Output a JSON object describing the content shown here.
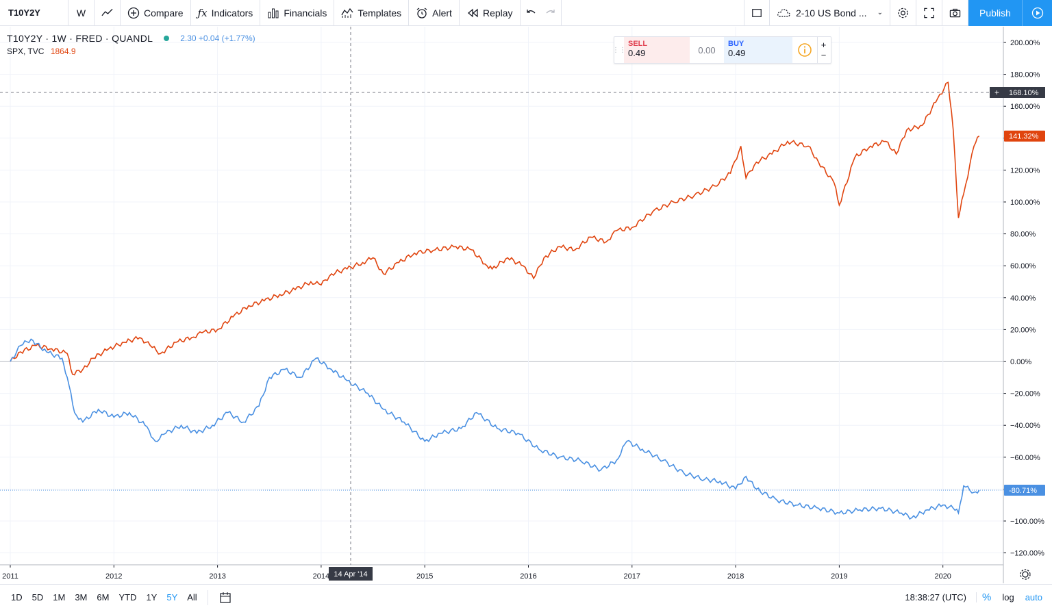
{
  "toolbar": {
    "symbol": "T10Y2Y",
    "interval": "W",
    "compare_label": "Compare",
    "indicators_label": "Indicators",
    "financials_label": "Financials",
    "templates_label": "Templates",
    "alert_label": "Alert",
    "replay_label": "Replay",
    "layout_name": "2-10 US Bond ...",
    "publish_label": "Publish"
  },
  "legend": {
    "main_symbol": "T10Y2Y · 1W · FRED · QUANDL",
    "main_value": "2.30 +0.04 (+1.77%)",
    "compare_symbol": "SPX, TVC",
    "compare_value": "1864.9"
  },
  "trade": {
    "sell_label": "SELL",
    "sell_price": "0.49",
    "spread": "0.00",
    "buy_label": "BUY",
    "buy_price": "0.49"
  },
  "crosshair": {
    "date_label": "14 Apr '14",
    "price_label": "168.10%"
  },
  "price_badges": {
    "spx_last": "141.32%",
    "t10y2y_last": "-80.71%"
  },
  "colors": {
    "spx": "#e0440e",
    "t10y2y": "#4a90e2",
    "grid": "#f0f3fa",
    "crosshair_label": "#363a45"
  },
  "bottombar": {
    "ranges": [
      "1D",
      "5D",
      "1M",
      "3M",
      "6M",
      "YTD",
      "1Y",
      "5Y",
      "All"
    ],
    "active_range": "5Y",
    "clock": "18:38:27 (UTC)",
    "pct_label": "%",
    "log_label": "log",
    "auto_label": "auto"
  },
  "chart_data": {
    "type": "line",
    "x_ticks": [
      "2011",
      "2012",
      "2013",
      "2014",
      "2015",
      "2016",
      "2017",
      "2018",
      "2019",
      "2020"
    ],
    "y_ticks": [
      "200.00%",
      "180.00%",
      "160.00%",
      "140.00%",
      "120.00%",
      "100.00%",
      "80.00%",
      "60.00%",
      "40.00%",
      "20.00%",
      "0.00%",
      "−20.00%",
      "−40.00%",
      "−60.00%",
      "−80.00%",
      "−100.00%",
      "−120.00%"
    ],
    "ylim": [
      -120,
      200
    ],
    "xlim": [
      2011.0,
      2020.5
    ],
    "series": [
      {
        "name": "SPX, TVC",
        "color": "#e0440e",
        "x": [
          2011.0,
          2011.1,
          2011.25,
          2011.4,
          2011.55,
          2011.6,
          2011.7,
          2011.8,
          2011.95,
          2012.1,
          2012.25,
          2012.35,
          2012.45,
          2012.6,
          2012.75,
          2012.85,
          2013.0,
          2013.15,
          2013.3,
          2013.45,
          2013.6,
          2013.75,
          2013.9,
          2014.0,
          2014.1,
          2014.25,
          2014.4,
          2014.5,
          2014.6,
          2014.75,
          2014.9,
          2015.1,
          2015.3,
          2015.45,
          2015.6,
          2015.65,
          2015.8,
          2015.95,
          2016.05,
          2016.15,
          2016.3,
          2016.45,
          2016.6,
          2016.75,
          2016.85,
          2017.0,
          2017.2,
          2017.4,
          2017.6,
          2017.8,
          2017.95,
          2018.05,
          2018.1,
          2018.2,
          2018.35,
          2018.5,
          2018.7,
          2018.8,
          2018.95,
          2019.0,
          2019.15,
          2019.3,
          2019.45,
          2019.55,
          2019.65,
          2019.8,
          2019.95,
          2020.05,
          2020.1,
          2020.15,
          2020.2,
          2020.3,
          2020.35
        ],
        "y": [
          0,
          6,
          10,
          8,
          5,
          -8,
          -5,
          2,
          8,
          12,
          15,
          10,
          5,
          12,
          15,
          18,
          20,
          28,
          35,
          38,
          42,
          45,
          50,
          48,
          55,
          58,
          62,
          65,
          55,
          62,
          68,
          70,
          72,
          70,
          60,
          58,
          65,
          60,
          52,
          65,
          72,
          70,
          78,
          75,
          82,
          84,
          94,
          100,
          104,
          110,
          118,
          135,
          115,
          125,
          130,
          138,
          135,
          125,
          112,
          98,
          128,
          135,
          138,
          130,
          145,
          148,
          165,
          175,
          145,
          90,
          105,
          135,
          141.32
        ]
      },
      {
        "name": "T10Y2Y · 1W · FRED · QUANDL",
        "color": "#4a90e2",
        "x": [
          2011.0,
          2011.1,
          2011.2,
          2011.35,
          2011.5,
          2011.55,
          2011.62,
          2011.7,
          2011.85,
          2012.0,
          2012.15,
          2012.3,
          2012.4,
          2012.5,
          2012.65,
          2012.8,
          2012.95,
          2013.1,
          2013.25,
          2013.4,
          2013.5,
          2013.65,
          2013.8,
          2013.95,
          2014.1,
          2014.25,
          2014.45,
          2014.6,
          2014.8,
          2015.0,
          2015.15,
          2015.35,
          2015.5,
          2015.7,
          2015.9,
          2016.1,
          2016.3,
          2016.5,
          2016.7,
          2016.85,
          2016.95,
          2017.1,
          2017.3,
          2017.5,
          2017.7,
          2017.85,
          2018.0,
          2018.1,
          2018.2,
          2018.4,
          2018.6,
          2018.8,
          2019.0,
          2019.2,
          2019.4,
          2019.6,
          2019.7,
          2019.85,
          2020.0,
          2020.1,
          2020.15,
          2020.2,
          2020.3,
          2020.35
        ],
        "y": [
          0,
          10,
          14,
          6,
          2,
          -10,
          -32,
          -38,
          -30,
          -35,
          -32,
          -40,
          -50,
          -45,
          -40,
          -45,
          -40,
          -32,
          -38,
          -28,
          -10,
          -5,
          -10,
          2,
          -5,
          -12,
          -20,
          -30,
          -38,
          -50,
          -45,
          -42,
          -32,
          -42,
          -45,
          -55,
          -60,
          -62,
          -68,
          -62,
          -50,
          -55,
          -62,
          -70,
          -74,
          -75,
          -80,
          -72,
          -80,
          -87,
          -90,
          -92,
          -95,
          -93,
          -92,
          -95,
          -98,
          -93,
          -90,
          -92,
          -95,
          -78,
          -82,
          -80.71
        ]
      }
    ]
  }
}
